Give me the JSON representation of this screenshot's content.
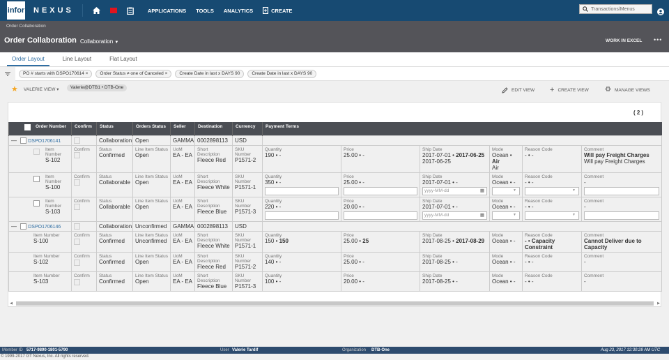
{
  "topbar": {
    "logo": "infor",
    "brand": "NEXUS",
    "menu": [
      "APPLICATIONS",
      "TOOLS",
      "ANALYTICS"
    ],
    "create": "CREATE",
    "search_placeholder": "Transactions/Menus"
  },
  "header": {
    "breadcrumb": "Order Collaboration",
    "title": "Order Collaboration",
    "view": "Collaboration",
    "work_excel": "WORK IN EXCEL",
    "more": "•••"
  },
  "tabs": [
    "Order Layout",
    "Line Layout",
    "Flat Layout"
  ],
  "filters": [
    "PO # starts with DSPO170614 ×",
    "Order Status ≠ one of Canceled ×",
    "Create Date in last x DAYS 90",
    "Create Date in last x DAYS 90"
  ],
  "viewbar": {
    "view_name": "VALERIE VIEW ▾",
    "view_chip": "Valerie@DTB1 • DTB-One",
    "edit": "EDIT VIEW",
    "create": "CREATE VIEW",
    "manage": "MANAGE VIEWS"
  },
  "grid": {
    "count": "( 2 )",
    "headers": [
      "Order Number",
      "Confirm",
      "Status",
      "Orders Status",
      "Seller",
      "Destination",
      "Currency",
      "Payment Terms"
    ],
    "labels": {
      "item": "Item Number",
      "confirm": "Confirm",
      "status": "Status",
      "lis": "Line Item Status",
      "uom": "UoM",
      "desc": "Short Description",
      "sku": "SKU Number",
      "qty": "Quantity",
      "price": "Price",
      "ship": "Ship Date",
      "mode": "Mode",
      "reason": "Reason Code",
      "comment": "Comment",
      "date_ph": "yyyy-MM-dd"
    },
    "orders": [
      {
        "number": "DSPO1706141",
        "status": "Collaboration",
        "order_status": "Open",
        "seller": "GAMMA",
        "destination": "0002898113",
        "currency": "USD",
        "lines": [
          {
            "item": "S-102",
            "status": "Confirmed",
            "lis": "Open",
            "uom": "EA - EA",
            "desc": "Fleece Red",
            "sku": "P1571-2",
            "qty": "190 • -",
            "price": "25.00 • -",
            "ship": "2017-07-01 • ",
            "ship_b": "2017-06-25",
            "ship2": "2017-06-25",
            "mode": "Ocean • ",
            "mode_b": "Air",
            "mode2": "Air",
            "reason": "- • -",
            "comment_b": "Will pay Freight Charges",
            "comment2": "Will pay Freight Charges"
          },
          {
            "item": "S-100",
            "status": "Collaborable",
            "lis": "Open",
            "uom": "EA - EA",
            "desc": "Fleece White",
            "sku": "P1571-1",
            "qty": "350 • -",
            "price": "25.00 • -",
            "ship": "2017-07-01 • -",
            "mode": "Ocean • -",
            "reason": "- • -",
            "comment": "-"
          },
          {
            "item": "S-103",
            "status": "Collaborable",
            "lis": "Open",
            "uom": "EA - EA",
            "desc": "Fleece Blue",
            "sku": "P1571-3",
            "qty": "220 • -",
            "price": "20.00 • -",
            "ship": "2017-07-01 • -",
            "mode": "Ocean • -",
            "reason": "- • -",
            "comment": "-"
          }
        ]
      },
      {
        "number": "DSPO1706146",
        "status": "Collaboration",
        "order_status": "Unconfirmed",
        "seller": "GAMMA",
        "destination": "0002898113",
        "currency": "USD",
        "lines": [
          {
            "item": "S-100",
            "status": "Confirmed",
            "lis": "Unconfirmed",
            "uom": "EA - EA",
            "desc": "Fleece White",
            "sku": "P1571-1",
            "qty": "150 • ",
            "qty_b": "150",
            "price": "25.00 • ",
            "price_b": "25",
            "ship": "2017-08-25 • ",
            "ship_b": "2017-08-29",
            "mode": "Ocean • -",
            "reason_b": "- • Capacity Constraint",
            "comment_b": "Cannot Deliver due to Capacity"
          },
          {
            "item": "S-102",
            "status": "Confirmed",
            "lis": "Open",
            "uom": "EA - EA",
            "desc": "Fleece Red",
            "sku": "P1571-2",
            "qty": "140 • -",
            "price": "25.00 • -",
            "ship": "2017-08-25 • -",
            "mode": "Ocean • -",
            "reason": "- • -",
            "comment": "-"
          },
          {
            "item": "S-103",
            "status": "Confirmed",
            "lis": "Open",
            "uom": "EA - EA",
            "desc": "Fleece Blue",
            "sku": "P1571-3",
            "qty": "100 • -",
            "price": "20.00 • -",
            "ship": "2017-08-25 • -",
            "mode": "Ocean • -",
            "reason": "- • -",
            "comment": "-"
          }
        ]
      }
    ]
  },
  "footer": {
    "member_label": "Member ID",
    "member": "5717-9890-1801-5790",
    "user_label": "User",
    "user": "Valerie Tardif",
    "org_label": "Organization",
    "org": "DTB-One",
    "timestamp": "Aug 23, 2017 12:30:28 AM UTC",
    "copyright": "© 1999-2017 GT Nexus, Inc. All rights reserved."
  }
}
